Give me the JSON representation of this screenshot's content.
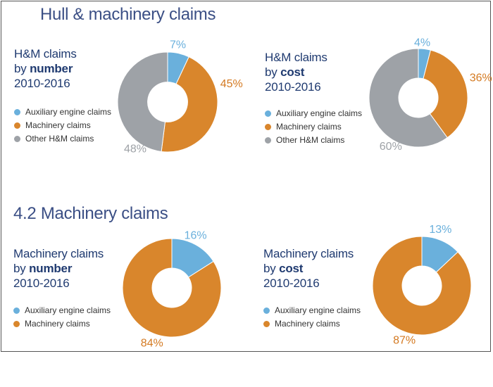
{
  "sections": [
    {
      "title": "Hull & machinery claims"
    },
    {
      "title": "4.2 Machinery claims"
    }
  ],
  "colors": {
    "auxiliary": "#6ab0dc",
    "machinery": "#d9862c",
    "other": "#9ea2a7",
    "title": "#3b4f85",
    "label_auxiliary": "#6ab0dc",
    "label_machinery": "#d47a22",
    "label_other": "#9ea2a7"
  },
  "chart_data": [
    {
      "type": "pie",
      "title_lines": [
        "H&M claims",
        "by",
        "number",
        "2010-2016"
      ],
      "categories": [
        "Auxiliary engine claims",
        "Machinery claims",
        "Other H&M claims"
      ],
      "values": [
        7,
        45,
        48
      ],
      "labels": [
        "7%",
        "45%",
        "48%"
      ],
      "legend": "left"
    },
    {
      "type": "pie",
      "title_lines": [
        "H&M claims",
        "by",
        "cost",
        "2010-2016"
      ],
      "categories": [
        "Auxiliary engine claims",
        "Machinery claims",
        "Other H&M claims"
      ],
      "values": [
        4,
        36,
        60
      ],
      "labels": [
        "4%",
        "36%",
        "60%"
      ],
      "legend": "left"
    },
    {
      "type": "pie",
      "title_lines": [
        "Machinery claims",
        "by",
        "number",
        "2010-2016"
      ],
      "categories": [
        "Auxiliary engine claims",
        "Machinery claims"
      ],
      "values": [
        16,
        84
      ],
      "labels": [
        "16%",
        "84%"
      ],
      "legend": "left"
    },
    {
      "type": "pie",
      "title_lines": [
        "Machinery claims",
        "by",
        "cost",
        "2010-2016"
      ],
      "categories": [
        "Auxiliary engine claims",
        "Machinery claims"
      ],
      "values": [
        13,
        87
      ],
      "labels": [
        "13%",
        "87%"
      ],
      "legend": "left"
    }
  ]
}
